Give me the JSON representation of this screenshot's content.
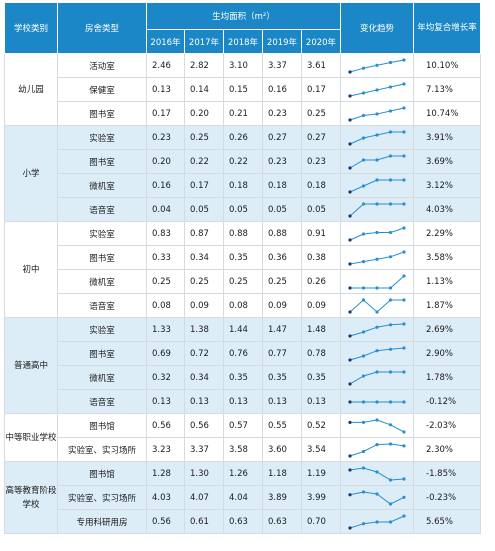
{
  "header": {
    "school_type": "学校类别",
    "room_type": "房舍类型",
    "area": "生均面积（m²）",
    "years": [
      "2016年",
      "2017年",
      "2018年",
      "2019年",
      "2020年"
    ],
    "trend": "变化趋势",
    "growth": "年均复合增长率"
  },
  "groups": [
    {
      "name": "幼儿园",
      "rows": [
        {
          "type": "活动室",
          "values": [
            "2.46",
            "2.82",
            "3.10",
            "3.37",
            "3.61"
          ],
          "growth": "10.10%"
        },
        {
          "type": "保健室",
          "values": [
            "0.13",
            "0.14",
            "0.15",
            "0.16",
            "0.17"
          ],
          "growth": "7.13%"
        },
        {
          "type": "图书室",
          "values": [
            "0.17",
            "0.20",
            "0.21",
            "0.23",
            "0.25"
          ],
          "growth": "10.74%"
        }
      ]
    },
    {
      "name": "小学",
      "rows": [
        {
          "type": "实验室",
          "values": [
            "0.23",
            "0.25",
            "0.26",
            "0.27",
            "0.27"
          ],
          "growth": "3.91%"
        },
        {
          "type": "图书室",
          "values": [
            "0.20",
            "0.22",
            "0.22",
            "0.23",
            "0.23"
          ],
          "growth": "3.69%"
        },
        {
          "type": "微机室",
          "values": [
            "0.16",
            "0.17",
            "0.18",
            "0.18",
            "0.18"
          ],
          "growth": "3.12%"
        },
        {
          "type": "语音室",
          "values": [
            "0.04",
            "0.05",
            "0.05",
            "0.05",
            "0.05"
          ],
          "growth": "4.03%"
        }
      ]
    },
    {
      "name": "初中",
      "rows": [
        {
          "type": "实验室",
          "values": [
            "0.83",
            "0.87",
            "0.88",
            "0.88",
            "0.91"
          ],
          "growth": "2.29%"
        },
        {
          "type": "图书室",
          "values": [
            "0.33",
            "0.34",
            "0.35",
            "0.36",
            "0.38"
          ],
          "growth": "3.58%"
        },
        {
          "type": "微机室",
          "values": [
            "0.25",
            "0.25",
            "0.25",
            "0.25",
            "0.26"
          ],
          "growth": "1.13%"
        },
        {
          "type": "语音室",
          "values": [
            "0.08",
            "0.09",
            "0.08",
            "0.09",
            "0.09"
          ],
          "growth": "1.87%"
        }
      ]
    },
    {
      "name": "普通高中",
      "rows": [
        {
          "type": "实验室",
          "values": [
            "1.33",
            "1.38",
            "1.44",
            "1.47",
            "1.48"
          ],
          "growth": "2.69%"
        },
        {
          "type": "图书室",
          "values": [
            "0.69",
            "0.72",
            "0.76",
            "0.77",
            "0.78"
          ],
          "growth": "2.90%"
        },
        {
          "type": "微机室",
          "values": [
            "0.32",
            "0.34",
            "0.35",
            "0.35",
            "0.35"
          ],
          "growth": "1.78%"
        },
        {
          "type": "语音室",
          "values": [
            "0.13",
            "0.13",
            "0.13",
            "0.13",
            "0.13"
          ],
          "growth": "-0.12%"
        }
      ]
    },
    {
      "name": "中等职业学校",
      "rows": [
        {
          "type": "图书馆",
          "values": [
            "0.56",
            "0.56",
            "0.57",
            "0.55",
            "0.52"
          ],
          "growth": "-2.03%"
        },
        {
          "type": "实验室、实习场所",
          "values": [
            "3.23",
            "3.37",
            "3.58",
            "3.60",
            "3.54"
          ],
          "growth": "2.30%"
        }
      ]
    },
    {
      "name": "高等教育阶段学校",
      "rows": [
        {
          "type": "图书馆",
          "values": [
            "1.28",
            "1.30",
            "1.26",
            "1.18",
            "1.19"
          ],
          "growth": "-1.85%"
        },
        {
          "type": "实验室、实习场所",
          "values": [
            "4.03",
            "4.07",
            "4.04",
            "3.89",
            "3.99"
          ],
          "growth": "-0.23%"
        },
        {
          "type": "专用科研用房",
          "values": [
            "0.56",
            "0.61",
            "0.63",
            "0.63",
            "0.70"
          ],
          "growth": "5.65%"
        }
      ]
    }
  ],
  "colors": {
    "header_bg": "#1b87c6",
    "header_text": "#ffffff",
    "band_light": "#dcedf8",
    "band_white": "#ffffff",
    "sparkline": "#2a8fd0",
    "first_point": "#1a3a6b"
  }
}
